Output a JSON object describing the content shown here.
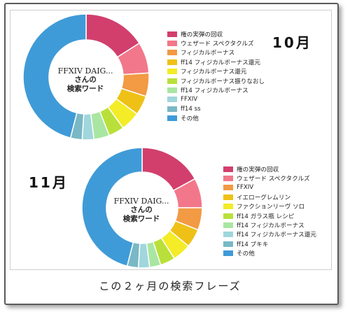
{
  "caption": "この２ヶ月の検索フレーズ",
  "colors": {
    "c1": "#d23f6c",
    "c2": "#f2778a",
    "c3": "#f29a44",
    "c4": "#efc117",
    "c5": "#f3ec27",
    "c6": "#b9e03a",
    "c7": "#a9e6a2",
    "c8": "#a0d6dc",
    "c9": "#7ab8c6",
    "c10": "#3f9bd7"
  },
  "chart_data": [
    {
      "type": "pie",
      "month_label": "10月",
      "center_title": "FFXIV  DAIG...",
      "center_subtitle": [
        "さんの",
        "検索ワード"
      ],
      "legend_position": "right",
      "categories": [
        "権の実弾の回収",
        "ウェザード スペクタクルズ",
        "フィジカルボーナス",
        "ff14 フィジカルボーナス還元",
        "フィジカルボーナス還元",
        "フィジカルボーナス振りなおし",
        "ff14 フィジカルボーナス",
        "FFXIV",
        "ff14 ss",
        "その他"
      ],
      "values": [
        16,
        8,
        6,
        5,
        5,
        4,
        4,
        3,
        3,
        46
      ],
      "colors": [
        "#d23f6c",
        "#f2778a",
        "#f29a44",
        "#efc117",
        "#f3ec27",
        "#b9e03a",
        "#a9e6a2",
        "#a0d6dc",
        "#7ab8c6",
        "#3f9bd7"
      ]
    },
    {
      "type": "pie",
      "month_label": "11月",
      "center_title": "FFXIV  DAIG...",
      "center_subtitle": [
        "さんの",
        "検索ワード"
      ],
      "legend_position": "right",
      "categories": [
        "権の実弾の回収",
        "ウェザード スペクタクルズ",
        "FFXIV",
        "イエローグレムリン",
        "ファクションリーヴ ソロ",
        "ff14 ガラス瓶 レシピ",
        "ff14 フィジカルボーナス",
        "ff14 フィジカルボーナス還元",
        "ff14 ブキキ",
        "その他"
      ],
      "values": [
        17,
        8,
        6,
        5,
        5,
        4,
        3,
        3,
        3,
        46
      ],
      "colors": [
        "#d23f6c",
        "#f2778a",
        "#f29a44",
        "#efc117",
        "#f3ec27",
        "#b9e03a",
        "#a9e6a2",
        "#a0d6dc",
        "#7ab8c6",
        "#3f9bd7"
      ]
    }
  ]
}
